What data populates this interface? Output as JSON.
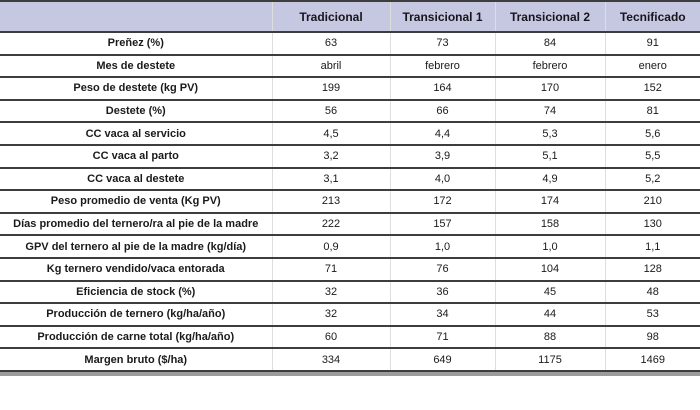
{
  "table": {
    "columns": [
      "",
      "Tradicional",
      "Transicional 1",
      "Transicional 2",
      "Tecnificado"
    ],
    "rows": [
      {
        "label": "Preñez (%)",
        "values": [
          "63",
          "73",
          "84",
          "91"
        ]
      },
      {
        "label": "Mes de destete",
        "values": [
          "abril",
          "febrero",
          "febrero",
          "enero"
        ]
      },
      {
        "label": "Peso de destete (kg PV)",
        "values": [
          "199",
          "164",
          "170",
          "152"
        ]
      },
      {
        "label": "Destete (%)",
        "values": [
          "56",
          "66",
          "74",
          "81"
        ]
      },
      {
        "label": "CC vaca al servicio",
        "values": [
          "4,5",
          "4,4",
          "5,3",
          "5,6"
        ]
      },
      {
        "label": "CC vaca al parto",
        "values": [
          "3,2",
          "3,9",
          "5,1",
          "5,5"
        ]
      },
      {
        "label": "CC vaca al destete",
        "values": [
          "3,1",
          "4,0",
          "4,9",
          "5,2"
        ]
      },
      {
        "label": "Peso promedio de venta (Kg PV)",
        "values": [
          "213",
          "172",
          "174",
          "210"
        ]
      },
      {
        "label": "Días promedio del ternero/ra al pie de la madre",
        "values": [
          "222",
          "157",
          "158",
          "130"
        ]
      },
      {
        "label": "GPV del ternero al pie de la madre (kg/día)",
        "values": [
          "0,9",
          "1,0",
          "1,0",
          "1,1"
        ]
      },
      {
        "label": "Kg ternero vendido/vaca entorada",
        "values": [
          "71",
          "76",
          "104",
          "128"
        ]
      },
      {
        "label": "Eficiencia de stock (%)",
        "values": [
          "32",
          "36",
          "45",
          "48"
        ]
      },
      {
        "label": "Producción de ternero (kg/ha/año)",
        "values": [
          "32",
          "34",
          "44",
          "53"
        ]
      },
      {
        "label": "Producción de carne total (kg/ha/año)",
        "values": [
          "60",
          "71",
          "88",
          "98"
        ]
      },
      {
        "label": "Margen bruto ($/ha)",
        "values": [
          "334",
          "649",
          "1175",
          "1469"
        ]
      }
    ]
  },
  "colors": {
    "header_bg": "#c6c7e1",
    "rule_line": "#3d3d3d",
    "column_separator": "#dedede",
    "bottom_strip": "#9b9b9b",
    "text": "#1a1a1a"
  },
  "chart_data": {
    "type": "table",
    "title": "",
    "categories": [
      "Tradicional",
      "Transicional 1",
      "Transicional 2",
      "Tecnificado"
    ],
    "series": [
      {
        "name": "Preñez (%)",
        "values": [
          63,
          73,
          84,
          91
        ]
      },
      {
        "name": "Mes de destete",
        "values": [
          "abril",
          "febrero",
          "febrero",
          "enero"
        ]
      },
      {
        "name": "Peso de destete (kg PV)",
        "values": [
          199,
          164,
          170,
          152
        ]
      },
      {
        "name": "Destete (%)",
        "values": [
          56,
          66,
          74,
          81
        ]
      },
      {
        "name": "CC vaca al servicio",
        "values": [
          4.5,
          4.4,
          5.3,
          5.6
        ]
      },
      {
        "name": "CC vaca al parto",
        "values": [
          3.2,
          3.9,
          5.1,
          5.5
        ]
      },
      {
        "name": "CC vaca al destete",
        "values": [
          3.1,
          4.0,
          4.9,
          5.2
        ]
      },
      {
        "name": "Peso promedio de venta (Kg PV)",
        "values": [
          213,
          172,
          174,
          210
        ]
      },
      {
        "name": "Días promedio del ternero/ra al pie de la madre",
        "values": [
          222,
          157,
          158,
          130
        ]
      },
      {
        "name": "GPV del ternero al pie de la madre (kg/día)",
        "values": [
          0.9,
          1.0,
          1.0,
          1.1
        ]
      },
      {
        "name": "Kg ternero vendido/vaca entorada",
        "values": [
          71,
          76,
          104,
          128
        ]
      },
      {
        "name": "Eficiencia de stock (%)",
        "values": [
          32,
          36,
          45,
          48
        ]
      },
      {
        "name": "Producción de ternero (kg/ha/año)",
        "values": [
          32,
          34,
          44,
          53
        ]
      },
      {
        "name": "Producción de carne total (kg/ha/año)",
        "values": [
          60,
          71,
          88,
          98
        ]
      },
      {
        "name": "Margen bruto ($/ha)",
        "values": [
          334,
          649,
          1175,
          1469
        ]
      }
    ]
  }
}
